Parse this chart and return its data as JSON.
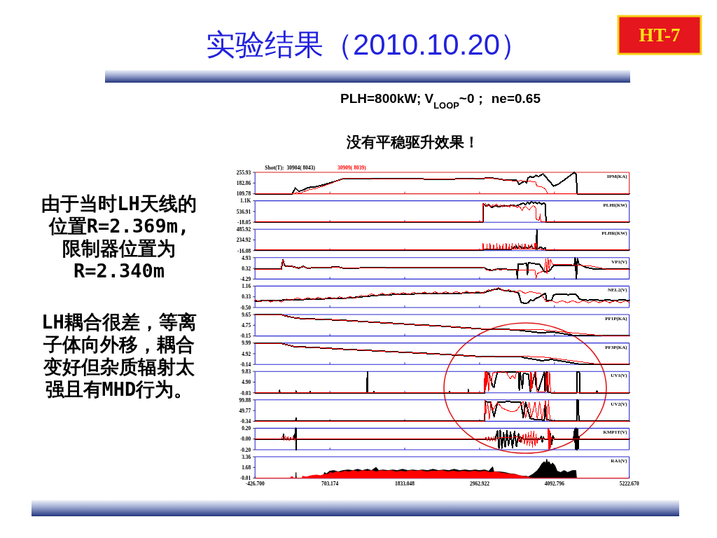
{
  "chart_data": [
    {
      "type": "other",
      "title": "实验结果（2010.10.20）",
      "subtitle": "PLH=800kW; V$_{LOOP}$~0； ne=0.65",
      "annotations": [
        "HT-7",
        "没有平稳驱升效果！",
        "由于当时LH天线的位置R=2.369m,限制器位置为R=2.340m",
        "LH耦合很差，等离子体向外移，耦合变好但杂质辐射太强且有MHD行为。"
      ]
    },
    {
      "type": "line",
      "ylabel": "IPM(KA)",
      "legend": "top left",
      "legend_title": "Shot(T):",
      "tick_labels": "y",
      "xlim": [
        -426.7,
        5222.67
      ],
      "xticks": [
        {
          "value": 703.174,
          "label": null
        },
        {
          "value": 1833.048,
          "label": null
        },
        {
          "value": 2962.922,
          "label": null
        },
        {
          "value": 4092.796,
          "label": null
        }
      ],
      "ylim": [
        109.78,
        255.93
      ],
      "yticks": [
        109.78,
        182.86,
        255.93
      ],
      "series": [
        {
          "name": "30904( 8043)",
          "color": "#000000",
          "x": [
            -426.7,
            135,
            181,
            234,
            304,
            375,
            481,
            622,
            763,
            911,
            1328,
            1681,
            2267,
            2528,
            3022,
            3093,
            3199,
            3340,
            3527,
            3559,
            3605,
            3640,
            3675,
            3693,
            3728,
            3764,
            3816,
            3852,
            3922,
            3993,
            4081,
            4152,
            4293,
            4392,
            4420,
            4438,
            5222.67
          ],
          "values": [
            110,
            110,
            149,
            126,
            136,
            152,
            157,
            173,
            191,
            214,
            213,
            212,
            210,
            210,
            214,
            220,
            214,
            204,
            201,
            173,
            188,
            195,
            184,
            217,
            227,
            220,
            235,
            227,
            246,
            208,
            162,
            175,
            221,
            255,
            243,
            110,
            110
          ]
        },
        {
          "name": "30909( 8039)",
          "color": "#ff0000",
          "x": [
            -426.7,
            163,
            198,
            269,
            375,
            481,
            622,
            763,
            911,
            1681,
            2267,
            2528,
            3022,
            3093,
            3340,
            3516,
            3587,
            3658,
            3806,
            3827,
            3905,
            3958,
            3993,
            5222.67
          ],
          "values": [
            110,
            110,
            118,
            116,
            136,
            145,
            165,
            188,
            214,
            212,
            210,
            210,
            214,
            217,
            204,
            195,
            200,
            195,
            193,
            162,
            156,
            141,
            110,
            110
          ]
        }
      ]
    },
    {
      "type": "line",
      "ylabel": "PLHI(KW)",
      "tick_labels": "y",
      "xlim": [
        -426.7,
        5222.67
      ],
      "xticks": [
        {
          "value": 703.174,
          "label": null
        },
        {
          "value": 1833.048,
          "label": null
        },
        {
          "value": 2962.922,
          "label": null
        },
        {
          "value": 4092.796,
          "label": null
        }
      ],
      "ylim": [
        -18.05,
        1091.87
      ],
      "yticks": [
        -18.05,
        536.91,
        {
          "value": 1091.87,
          "label": "1.1K"
        }
      ],
      "series": [
        {
          "color": "#000000",
          "x": [
            -426.7,
            3015,
            3019,
            3058,
            3100,
            3146,
            3199,
            3252,
            3305,
            3375,
            3446,
            3516,
            3580,
            3622,
            3658,
            3686,
            3714,
            3746,
            3781,
            3806,
            3834,
            3862,
            3898,
            3933,
            3958,
            3965,
            5222.67
          ],
          "values": [
            0,
            0,
            940,
            810,
            890,
            740,
            840,
            770,
            840,
            810,
            860,
            830,
            910,
            970,
            890,
            1010,
            940,
            1040,
            970,
            1020,
            940,
            1010,
            910,
            970,
            890,
            0,
            0
          ]
        },
        {
          "color": "#ff0000",
          "x": [
            -426.7,
            3012,
            3015,
            3022,
            3050,
            3079,
            3107,
            3135,
            3163,
            3192,
            3220,
            3248,
            3276,
            3305,
            3333,
            3361,
            3389,
            3418,
            3446,
            3474,
            3502,
            3531,
            3559,
            3587,
            3605,
            3629,
            3658,
            3686,
            3714,
            3742,
            3771,
            3799,
            3813,
            3820,
            3848,
            3869,
            3876,
            3887,
            3894,
            5222.67
          ],
          "values": [
            0,
            0,
            970,
            840,
            940,
            790,
            910,
            770,
            890,
            810,
            930,
            790,
            870,
            770,
            890,
            790,
            860,
            770,
            890,
            790,
            840,
            740,
            810,
            690,
            600,
            740,
            810,
            690,
            620,
            740,
            840,
            770,
            690,
            150,
            80,
            120,
            400,
            20,
            0,
            0
          ]
        }
      ]
    },
    {
      "type": "line",
      "ylabel": "PLHR(KW)",
      "tick_labels": "y",
      "xlim": [
        -426.7,
        5222.67
      ],
      "xticks": [
        {
          "value": 703.174,
          "label": null
        },
        {
          "value": 1833.048,
          "label": null
        },
        {
          "value": 2962.922,
          "label": null
        },
        {
          "value": 4092.796,
          "label": null
        }
      ],
      "ylim": [
        -16.08,
        485.92
      ],
      "yticks": [
        -16.08,
        234.92,
        485.92
      ],
      "series": [
        {
          "color": "#000000",
          "x": [
            -426.7,
            3015,
            3022,
            3234,
            3446,
            3516,
            3534,
            3569,
            3605,
            3658,
            3693,
            3746,
            3781,
            3820,
            3827,
            3834,
            3887,
            3922,
            3958,
            3965,
            5222.67
          ],
          "values": [
            0,
            0,
            20,
            20,
            20,
            100,
            30,
            90,
            30,
            70,
            30,
            90,
            30,
            20,
            470,
            20,
            70,
            30,
            50,
            0,
            0
          ]
        },
        {
          "color": "#ff0000",
          "x": [
            -426.7,
            3012,
            3015,
            3026,
            3068,
            3075,
            3082,
            3114,
            3121,
            3128,
            3167,
            3174,
            3181,
            3216,
            3223,
            3230,
            3262,
            3269,
            3276,
            3308,
            3315,
            3322,
            3358,
            3365,
            3372,
            3403,
            3411,
            3418,
            3446,
            3453,
            3460,
            3499,
            3506,
            3513,
            3545,
            3552,
            3559,
            3598,
            3605,
            3612,
            3643,
            3651,
            3658,
            3696,
            3703,
            3711,
            3746,
            3753,
            3760,
            3792,
            3799,
            3806,
            3816,
            3834,
            3894,
            3898,
            5222.67
          ],
          "values": [
            0,
            0,
            160,
            20,
            20,
            140,
            20,
            20,
            160,
            20,
            20,
            130,
            20,
            20,
            150,
            20,
            20,
            120,
            20,
            20,
            140,
            20,
            20,
            160,
            20,
            20,
            130,
            20,
            20,
            150,
            20,
            20,
            140,
            20,
            20,
            160,
            20,
            20,
            130,
            20,
            20,
            150,
            20,
            20,
            120,
            20,
            20,
            140,
            20,
            20,
            160,
            20,
            180,
            20,
            20,
            0,
            0
          ]
        }
      ]
    },
    {
      "type": "line",
      "ylabel": "VP1(V)",
      "tick_labels": "y",
      "xlim": [
        -426.7,
        5222.67
      ],
      "xticks": [
        {
          "value": 703.174,
          "label": null
        },
        {
          "value": 1833.048,
          "label": null
        },
        {
          "value": 2962.922,
          "label": null
        },
        {
          "value": 4092.796,
          "label": null
        }
      ],
      "ylim": [
        -4.29,
        4.93
      ],
      "yticks": [
        -4.29,
        0.32,
        4.93
      ],
      "series": [
        {
          "color": "#000000",
          "x": [
            -426.7,
            -31,
            -6,
            15,
            40,
            110,
            181,
            234,
            304,
            375,
            446,
            622,
            834,
            904,
            1152,
            1681,
            2267,
            2528,
            3022,
            3075,
            3146,
            3234,
            3375,
            3523,
            3534,
            3545,
            3675,
            3686,
            3700,
            3799,
            3869,
            3905,
            3940,
            4011,
            4081,
            4392,
            4406,
            4424,
            4441,
            4462,
            4575,
            4717,
            5222.67
          ],
          "values": [
            -0.1,
            -0.1,
            4.0,
            1.7,
            1.2,
            1.3,
            0.8,
            0.4,
            1.2,
            0.2,
            0.7,
            0.7,
            0.9,
            0.4,
            0.5,
            0.7,
            0.7,
            0.8,
            0.7,
            -0.1,
            -0.5,
            0.0,
            -0.1,
            -0.3,
            -4.2,
            2.1,
            2.4,
            -2.3,
            2.8,
            2.3,
            2.0,
            0.5,
            -1.1,
            -0.9,
            1.5,
            1.6,
            4.8,
            -4.2,
            4.5,
            2.1,
            0.7,
            -0.1,
            -0.1
          ]
        },
        {
          "color": "#ff0000",
          "x": [
            -426.7,
            -31,
            -6,
            15,
            40,
            110,
            181,
            234,
            304,
            375,
            446,
            622,
            834,
            904,
            1152,
            1681,
            2267,
            2528,
            3022,
            3058,
            3128,
            3199,
            3269,
            3411,
            3587,
            3799,
            3816,
            3834,
            3887,
            3940,
            3965,
            3979,
            3997,
            4014,
            4032,
            4064,
            4293,
            4434,
            4646,
            4893,
            5222.67
          ],
          "values": [
            -0.1,
            -0.1,
            4.0,
            1.7,
            1.2,
            1.3,
            0.8,
            0.4,
            1.2,
            0.2,
            0.7,
            0.7,
            0.9,
            0.4,
            0.5,
            0.7,
            0.7,
            0.8,
            0.7,
            -0.3,
            -0.7,
            0.1,
            -0.3,
            -0.1,
            -0.5,
            -0.5,
            -4.2,
            -1.9,
            -1.3,
            -0.7,
            4.4,
            -1.9,
            4.7,
            -0.7,
            4.1,
            2.1,
            2.0,
            1.7,
            1.3,
            -0.1,
            -0.1
          ]
        }
      ]
    },
    {
      "type": "line",
      "ylabel": "NEL2(V)",
      "tick_labels": "y",
      "xlim": [
        -426.7,
        5222.67
      ],
      "xticks": [
        {
          "value": 703.174,
          "label": null
        },
        {
          "value": 1833.048,
          "label": null
        },
        {
          "value": 2962.922,
          "label": null
        },
        {
          "value": 4092.796,
          "label": null
        }
      ],
      "ylim": [
        -0.5,
        1.16
      ],
      "yticks": [
        {
          "value": -0.5,
          "label": "-0.50"
        },
        0.33,
        1.16
      ],
      "series": [
        {
          "color": "#000000",
          "x": [
            -426.7,
            1000,
            1170,
            1500,
            2000,
            2500,
            3010,
            3170,
            3250,
            3330,
            3500,
            3552,
            3590,
            3650,
            3700,
            3730,
            3770,
            3810,
            3860,
            3905,
            3958,
            3976,
            4050,
            4081,
            4200,
            4300,
            4420,
            4470,
            4510,
            4600,
            4700,
            4800,
            4900,
            5000,
            5100,
            5222.67
          ],
          "values": [
            0.0,
            0.24,
            0.33,
            0.48,
            0.56,
            0.6,
            0.63,
            0.88,
            0.95,
            0.82,
            0.72,
            0.62,
            -0.09,
            -0.19,
            -0.12,
            0.1,
            0.03,
            0.2,
            0.3,
            0.46,
            0.61,
            0.03,
            0.03,
            0.5,
            0.52,
            0.5,
            0.52,
            0.18,
            0.1,
            0.06,
            0.12,
            0.04,
            0.1,
            0.03,
            0.1,
            0.05
          ]
        },
        {
          "color": "#ff0000",
          "x": [
            -426.7,
            -350,
            -270,
            -190,
            -110,
            -30,
            50,
            130,
            210,
            290,
            370,
            450,
            530,
            610,
            690,
            770,
            850,
            930,
            1010,
            1090,
            1170,
            1250,
            1330,
            1410,
            1490,
            1570,
            1650,
            1730,
            1810,
            1890,
            1970,
            2050,
            2130,
            2210,
            2290,
            2370,
            2450,
            2530,
            2610,
            2690,
            2770,
            2850,
            2930,
            3010,
            3090,
            3170,
            3250,
            3330,
            3410,
            3490,
            3570,
            3650,
            3730,
            3810,
            3890,
            3970,
            4050,
            4130,
            4210,
            4290,
            4370,
            4450,
            4530,
            4610,
            4690,
            4770,
            4850,
            4930,
            5010,
            5090,
            5170,
            5222.67
          ],
          "values": [
            0.1,
            -0.06,
            0.09,
            -0.07,
            0.08,
            -0.08,
            0.16,
            0.07,
            0.25,
            0.1,
            0.27,
            0.12,
            0.29,
            0.14,
            0.31,
            0.16,
            0.33,
            0.18,
            0.35,
            0.21,
            0.44,
            0.36,
            0.56,
            0.42,
            0.6,
            0.46,
            0.64,
            0.49,
            0.66,
            0.51,
            0.68,
            0.53,
            0.7,
            0.55,
            0.72,
            0.56,
            0.73,
            0.58,
            0.74,
            0.59,
            0.75,
            0.59,
            0.75,
            0.6,
            0.86,
            0.84,
            1.06,
            0.77,
            0.88,
            0.68,
            0.81,
            0.6,
            0.74,
            0.64,
            0.58,
            -0.06,
            0.03,
            -0.13,
            0.03,
            -0.13,
            0.03,
            -0.13,
            0.03,
            -0.13,
            0.03,
            -0.13,
            0.03,
            -0.13,
            0.03,
            -0.13,
            0.03,
            -0.13
          ]
        }
      ]
    },
    {
      "type": "line",
      "ylabel": "PF1P(KA)",
      "tick_labels": "y",
      "xlim": [
        -426.7,
        5222.67
      ],
      "xticks": [
        {
          "value": 703.174,
          "label": null
        },
        {
          "value": 1833.048,
          "label": null
        },
        {
          "value": 2962.922,
          "label": null
        },
        {
          "value": 4092.796,
          "label": null
        }
      ],
      "ylim": [
        -0.15,
        9.65
      ],
      "yticks": [
        -0.15,
        4.75,
        9.65
      ],
      "series": [
        {
          "color": "#000000",
          "x": [
            -426.7,
            -31,
            22,
            163,
            269,
            622,
            975,
            1328,
            1681,
            2034,
            2267,
            3022,
            3516,
            3552,
            3905,
            4046,
            4399,
            4434,
            5222.67
          ],
          "values": [
            9.6,
            9.6,
            9.1,
            8.2,
            7.8,
            7.4,
            6.9,
            6.2,
            5.6,
            4.9,
            4.6,
            3.0,
            2.7,
            2.5,
            1.2,
            1.8,
            0.0,
            -0.1,
            -0.1
          ]
        },
        {
          "color": "#ff0000",
          "x": [
            -426.7,
            -31,
            22,
            163,
            269,
            622,
            975,
            1328,
            1681,
            2034,
            2267,
            3022,
            3516,
            3905,
            4117,
            4858,
            5222.67
          ],
          "values": [
            9.6,
            9.6,
            9.1,
            8.2,
            7.8,
            7.4,
            6.9,
            6.2,
            5.6,
            4.9,
            4.6,
            3.0,
            2.7,
            2.7,
            2.0,
            -0.1,
            -0.1
          ]
        }
      ]
    },
    {
      "type": "line",
      "ylabel": "PF3P(KA)",
      "tick_labels": "y",
      "xlim": [
        -426.7,
        5222.67
      ],
      "xticks": [
        {
          "value": 703.174,
          "label": null
        },
        {
          "value": 1833.048,
          "label": null
        },
        {
          "value": 2962.922,
          "label": null
        },
        {
          "value": 4092.796,
          "label": null
        }
      ],
      "ylim": [
        -0.14,
        9.99
      ],
      "yticks": [
        -0.14,
        4.92,
        9.99
      ],
      "series": [
        {
          "color": "#000000",
          "x": [
            -426.7,
            -31,
            22,
            163,
            622,
            975,
            1328,
            1681,
            2267,
            3022,
            3587,
            3622,
            3905,
            4046,
            4470,
            5222.67
          ],
          "values": [
            9.8,
            9.8,
            9.4,
            8.3,
            7.6,
            6.9,
            6.4,
            5.8,
            4.9,
            3.5,
            3.5,
            3.1,
            1.6,
            2.2,
            0.0,
            0.0
          ]
        },
        {
          "color": "#ff0000",
          "x": [
            -426.7,
            -31,
            22,
            163,
            622,
            975,
            1328,
            1681,
            2267,
            3022,
            3587,
            3905,
            4117,
            4752,
            5222.67
          ],
          "values": [
            9.8,
            9.8,
            9.4,
            8.3,
            7.6,
            6.9,
            6.4,
            5.8,
            4.9,
            3.5,
            3.7,
            3.4,
            2.6,
            0.0,
            0.0
          ]
        }
      ]
    },
    {
      "type": "line",
      "ylabel": "UV1(V)",
      "tick_labels": "y",
      "xlim": [
        -426.7,
        5222.67
      ],
      "xticks": [
        {
          "value": 703.174,
          "label": null
        },
        {
          "value": 1833.048,
          "label": null
        },
        {
          "value": 2962.922,
          "label": null
        },
        {
          "value": 4092.796,
          "label": null
        }
      ],
      "ylim": [
        -0.03,
        9.83
      ],
      "yticks": [
        -0.03,
        {
          "value": 4.9,
          "label": "4.90"
        },
        9.83
      ],
      "series": [
        {
          "color": "#000000",
          "x": [
            -426.7,
            -60,
            -56,
            -52,
            187,
            191,
            195,
            399,
            403,
            407,
            1264,
            1268,
            1272,
            1363,
            1367,
            1371,
            2506,
            2510,
            2514,
            2789,
            2793,
            2797,
            3041,
            3045,
            3093,
            3130,
            3160,
            3181,
            3200,
            3234,
            3340,
            3550,
            3562,
            3575,
            3610,
            3625,
            3700,
            3729,
            3760,
            3799,
            3816,
            3850,
            3941,
            3950,
            3976,
            3990,
            4050,
            4430,
            4434,
            4470,
            4475,
            4730,
            4734,
            4738,
            5222.67
          ],
          "values": [
            0,
            0,
            1.1,
            0,
            0,
            0.8,
            0,
            0,
            0.6,
            0,
            0,
            9.7,
            0,
            0,
            0.5,
            0,
            0,
            0.5,
            0,
            0,
            1.4,
            0,
            0,
            9.7,
            9.2,
            6.5,
            3.0,
            2.6,
            5.5,
            9.6,
            9.6,
            9.6,
            1.2,
            9.5,
            2.0,
            9.0,
            8.5,
            0.5,
            4.0,
            9.4,
            3.0,
            1.0,
            9.6,
            1.0,
            9.6,
            0.5,
            0,
            0,
            9.7,
            9.7,
            0,
            0,
            0.9,
            0,
            0
          ]
        },
        {
          "color": "#ff0000",
          "x": [
            -426.7,
            3030,
            3041,
            3048,
            3058,
            3068,
            3080,
            3100,
            3115,
            3140,
            3160,
            3200,
            3330,
            3370,
            3400,
            3430,
            3460,
            3499,
            3520,
            3600,
            3700,
            3725,
            3735,
            3745,
            3755,
            3799,
            3816,
            3830,
            3900,
            3958,
            3965,
            3975,
            3990,
            4005,
            4020,
            4035,
            4050,
            5222.67
          ],
          "values": [
            0,
            0,
            9.7,
            1.0,
            9.7,
            3.0,
            9.5,
            0.5,
            9.5,
            4.0,
            9.0,
            9.5,
            9.6,
            9.5,
            7.5,
            6.5,
            8.0,
            6.5,
            9.6,
            9.6,
            9.6,
            9.6,
            1.0,
            9.6,
            2.0,
            9.6,
            9.6,
            0.5,
            0.3,
            0.5,
            9.6,
            1.0,
            9.6,
            0.5,
            9.6,
            0.3,
            0,
            0
          ]
        }
      ]
    },
    {
      "type": "line",
      "ylabel": "UV2(V)",
      "tick_labels": "y",
      "xlim": [
        -426.7,
        5222.67
      ],
      "xticks": [
        {
          "value": 703.174,
          "label": null
        },
        {
          "value": 1833.048,
          "label": null
        },
        {
          "value": 2962.922,
          "label": null
        },
        {
          "value": 4092.796,
          "label": null
        }
      ],
      "ylim": [
        -0.34,
        99.88
      ],
      "yticks": [
        -0.34,
        49.77,
        99.88
      ],
      "series": [
        {
          "color": "#000000",
          "x": [
            -426.7,
            187,
            191,
            195,
            3035,
            3040,
            3049,
            3128,
            3181,
            3234,
            3305,
            3375,
            3587,
            3622,
            3658,
            3728,
            3799,
            3869,
            3940,
            3958,
            3976,
            4081,
            4099,
            4430,
            4434,
            4450,
            4463,
            5222.67
          ],
          "values": [
            0,
            0,
            14,
            0,
            0,
            4,
            92,
            88,
            22,
            88,
            89,
            92,
            88,
            17,
            88,
            13,
            8,
            8,
            4,
            92,
            8,
            1,
            0,
            0,
            99,
            99,
            0,
            0
          ]
        },
        {
          "color": "#ff0000",
          "x": [
            -426.7,
            3035,
            3042,
            3058,
            3086,
            3110,
            3135,
            3163,
            3234,
            3305,
            3375,
            3446,
            3516,
            3569,
            3622,
            3658,
            3711,
            3746,
            3799,
            3834,
            3869,
            3905,
            3958,
            3982,
            4004,
            4028,
            4046,
            5222.67
          ],
          "values": [
            0,
            0,
            96,
            35,
            88,
            8,
            92,
            52,
            88,
            61,
            52,
            44,
            48,
            70,
            92,
            17,
            88,
            17,
            88,
            8,
            92,
            8,
            96,
            4,
            96,
            1,
            0,
            0
          ]
        }
      ]
    },
    {
      "type": "line",
      "ylabel": "KMP1T(V)",
      "tick_labels": "y",
      "xlim": [
        -426.7,
        5222.67
      ],
      "xticks": [
        {
          "value": 703.174,
          "label": null
        },
        {
          "value": 1833.048,
          "label": null
        },
        {
          "value": 2962.922,
          "label": null
        },
        {
          "value": 4092.796,
          "label": null
        }
      ],
      "ylim": [
        -0.2,
        0.2
      ],
      "yticks": [
        {
          "value": -0.2,
          "label": "-0.20"
        },
        {
          "value": 0,
          "label": "-0.00"
        },
        {
          "value": 0.2,
          "label": "0.20"
        }
      ],
      "series": [
        {
          "color": "#000000",
          "x": [
            -426.7,
            0,
            4,
            8,
            160,
            163,
            167,
            189,
            193,
            197,
            3200,
            3234,
            3255,
            3275,
            3300,
            3325,
            3350,
            3375,
            3400,
            3430,
            3460,
            3490,
            3520,
            3552,
            3580,
            3600,
            3620,
            3880,
            3895,
            3910,
            3925,
            3940,
            4010,
            4030,
            4050,
            4070,
            4090,
            4380,
            4400,
            4410,
            4420,
            4430,
            4440,
            4450,
            4460,
            4470,
            5222.67
          ],
          "values": [
            0,
            0,
            0.09,
            0,
            0,
            0.06,
            0,
            0.2,
            -0.2,
            0,
            0,
            0.15,
            -0.17,
            0.16,
            -0.17,
            0.12,
            -0.15,
            0.15,
            -0.12,
            0.13,
            -0.16,
            0.14,
            -0.14,
            0.1,
            -0.05,
            0.02,
            0,
            0,
            0.05,
            -0.06,
            0.04,
            0,
            0,
            0.1,
            -0.1,
            0.06,
            0,
            0,
            0.18,
            -0.19,
            0.2,
            -0.2,
            0.18,
            -0.18,
            0.05,
            0,
            0
          ]
        },
        {
          "color": "#ff0000",
          "x": [
            -426.7,
            -31,
            -10,
            10,
            30,
            50,
            70,
            90,
            110,
            130,
            150,
            170,
            190,
            215,
            3040,
            3060,
            3080,
            3100,
            3120,
            3140,
            3160,
            3180,
            3200,
            3230,
            3540,
            3560,
            3580,
            3600,
            3620,
            3640,
            3660,
            3680,
            3700,
            3720,
            3740,
            3760,
            3780,
            3800,
            3815,
            3830,
            3850,
            3870,
            3990,
            4000,
            4010,
            4020,
            4030,
            4040,
            4050,
            5222.67
          ],
          "values": [
            0,
            0,
            0.05,
            -0.03,
            0.06,
            -0.02,
            0.04,
            -0.03,
            0.03,
            -0.02,
            0.04,
            -0.02,
            0.02,
            0,
            0,
            0.03,
            -0.03,
            0.04,
            -0.04,
            0.03,
            -0.03,
            0.04,
            -0.04,
            0.02,
            0.04,
            -0.05,
            0.06,
            -0.07,
            0.08,
            -0.09,
            0.1,
            -0.11,
            0.12,
            -0.13,
            0.14,
            -0.15,
            0.15,
            -0.13,
            0.1,
            -0.08,
            0.02,
            0,
            0,
            0.2,
            -0.2,
            0.18,
            -0.19,
            0.05,
            0,
            0
          ]
        }
      ]
    },
    {
      "type": "area",
      "ylabel": "RA1(V)",
      "xlim": [
        -426.7,
        5222.67
      ],
      "xticks": [
        {
          "value": -426.7,
          "label": "-426.700"
        },
        703.174,
        1833.048,
        2962.922,
        4092.796,
        {
          "value": 5222.67,
          "label": "5222.670"
        }
      ],
      "ylim": [
        -0.01,
        3.36
      ],
      "yticks": [
        -0.01,
        1.68,
        3.36
      ],
      "series": [
        {
          "type": "area",
          "color": "#000000",
          "x": [
            -426.7,
            185,
            191,
            197,
            600,
            620,
            650,
            700,
            760,
            830,
            900,
            975,
            1050,
            1120,
            1190,
            1270,
            1330,
            1400,
            1440,
            1500,
            1580,
            1650,
            1720,
            1800,
            1880,
            1950,
            2030,
            2100,
            2180,
            2260,
            2340,
            2420,
            2500,
            2580,
            2660,
            2740,
            2820,
            2900,
            2960,
            3040,
            3100,
            3160,
            3180,
            3260,
            3340,
            3420,
            3500,
            3560,
            3620,
            3680,
            3693,
            3764,
            3834,
            3870,
            3905,
            3940,
            3960,
            3976,
            3995,
            4011,
            4040,
            4064,
            4099,
            4134,
            4187,
            4240,
            4293,
            4364,
            4417,
            4427,
            5222.67
          ],
          "values": [
            0,
            0,
            0.9,
            0,
            0,
            0.9,
            0.7,
            1.1,
            1.2,
            1.0,
            1.2,
            1.3,
            1.2,
            1.4,
            1.2,
            1.4,
            1.2,
            1.7,
            1.2,
            1.3,
            1.2,
            1.3,
            1.2,
            1.4,
            1.2,
            1.3,
            1.2,
            1.3,
            1.2,
            1.4,
            1.2,
            1.3,
            1.2,
            1.4,
            1.2,
            1.3,
            1.2,
            1.3,
            1.2,
            1.3,
            1.1,
            1.8,
            1.0,
            1.0,
            0.9,
            0.7,
            0.6,
            0.4,
            0.3,
            0.3,
            0.2,
            0.6,
            1.2,
            1.7,
            2.3,
            2.6,
            2.3,
            3.0,
            2.4,
            2.6,
            2.1,
            2.4,
            2.0,
            1.1,
            0.9,
            1.2,
            0.9,
            1.2,
            1.2,
            0,
            0
          ]
        },
        {
          "type": "area",
          "color": "#ff0000",
          "x": [
            -426.7,
            110,
            113,
            145,
            150,
            285,
            290,
            350,
            420,
            500,
            560,
            620,
            680,
            700,
            750,
            800,
            860,
            930,
            1000,
            1060,
            1130,
            1200,
            1270,
            1340,
            1400,
            1480,
            1550,
            1620,
            1700,
            1780,
            1850,
            1920,
            2000,
            2080,
            2160,
            2240,
            2320,
            2400,
            2480,
            2560,
            2640,
            2720,
            2800,
            2880,
            2960,
            3040,
            3120,
            3200,
            3260,
            3300,
            3380,
            3440,
            3500,
            3560,
            3620,
            3680,
            3720,
            3740,
            5222.67
          ],
          "values": [
            0,
            0,
            0.2,
            0.2,
            0,
            0,
            0.3,
            0.2,
            0.4,
            0.5,
            0.4,
            0.6,
            0.6,
            0.9,
            0.8,
            1.0,
            0.9,
            1.1,
            1.0,
            1.2,
            1.0,
            1.2,
            1.1,
            1.2,
            1.0,
            1.2,
            1.1,
            1.2,
            1.0,
            1.1,
            1.0,
            1.2,
            1.1,
            1.2,
            1.0,
            1.1,
            1.1,
            1.2,
            1.0,
            1.1,
            1.0,
            1.1,
            1.0,
            1.1,
            1.0,
            1.1,
            0.9,
            1.0,
            0.9,
            0.8,
            0.7,
            0.6,
            0.6,
            0.4,
            0.3,
            0.2,
            0.1,
            0,
            0
          ]
        }
      ]
    }
  ]
}
